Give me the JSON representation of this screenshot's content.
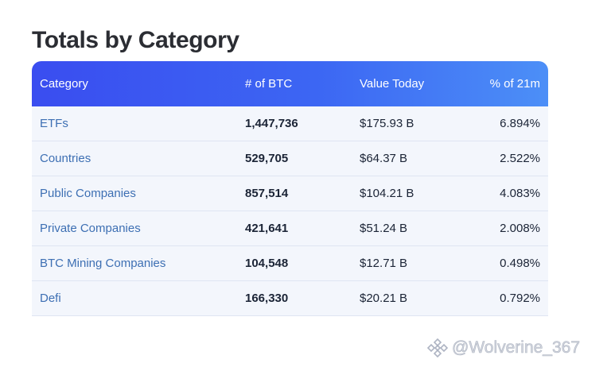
{
  "title": "Totals by Category",
  "table": {
    "columns": [
      "Category",
      "# of BTC",
      "Value Today",
      "% of 21m"
    ],
    "rows": [
      {
        "category": "ETFs",
        "btc": "1,447,736",
        "value": "$175.93 B",
        "pct": "6.894%"
      },
      {
        "category": "Countries",
        "btc": "529,705",
        "value": "$64.37 B",
        "pct": "2.522%"
      },
      {
        "category": "Public Companies",
        "btc": "857,514",
        "value": "$104.21 B",
        "pct": "4.083%"
      },
      {
        "category": "Private Companies",
        "btc": "421,641",
        "value": "$51.24 B",
        "pct": "2.008%"
      },
      {
        "category": "BTC Mining Companies",
        "btc": "104,548",
        "value": "$12.71 B",
        "pct": "0.498%"
      },
      {
        "category": "Defi",
        "btc": "166,330",
        "value": "$20.21 B",
        "pct": "0.792%"
      }
    ]
  },
  "watermark": {
    "text": "@Wolverine_367",
    "icon": "binance-logo-icon"
  },
  "colors": {
    "header_gradient_start": "#3a4df0",
    "header_gradient_end": "#4c8ff7",
    "category_link": "#3d6fb3",
    "row_background": "#f3f6fc",
    "title": "#2b2d33"
  }
}
